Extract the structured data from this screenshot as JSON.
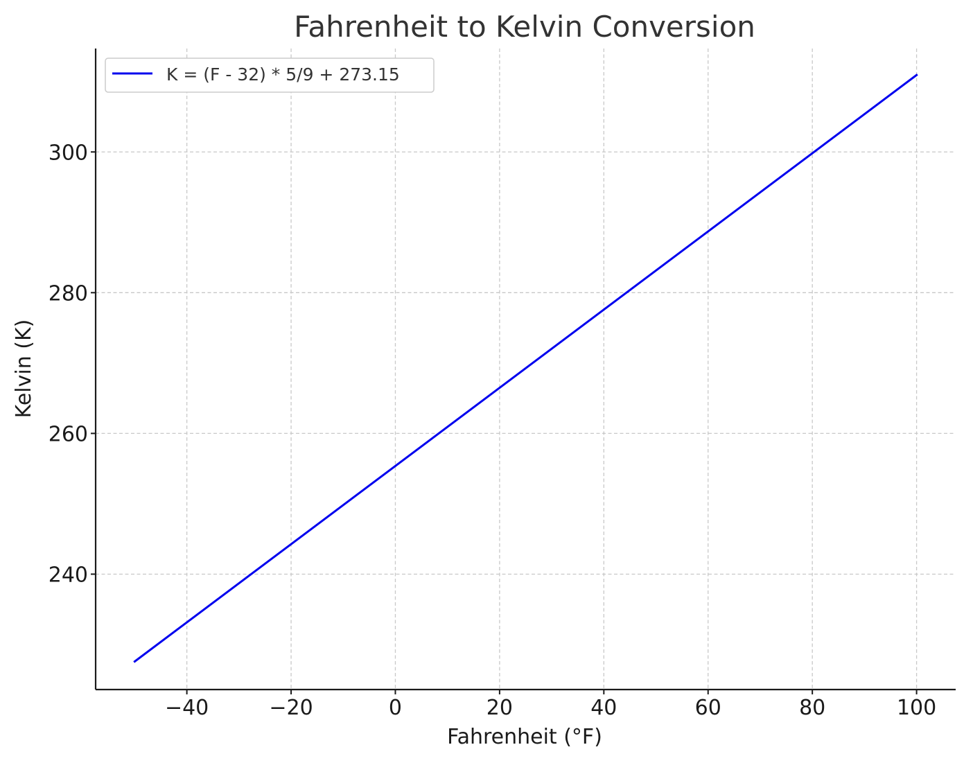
{
  "chart_data": {
    "type": "line",
    "title": "Fahrenheit to Kelvin Conversion",
    "xlabel": "Fahrenheit (°F)",
    "ylabel": "Kelvin (K)",
    "xlim": [
      -57.5,
      107.5
    ],
    "ylim": [
      223.6,
      314.7
    ],
    "x_ticks": [
      -40,
      -20,
      0,
      20,
      40,
      60,
      80,
      100
    ],
    "x_tick_labels": [
      "−40",
      "−20",
      "0",
      "20",
      "40",
      "60",
      "80",
      "100"
    ],
    "y_ticks": [
      240,
      260,
      280,
      300
    ],
    "y_tick_labels": [
      "240",
      "260",
      "280",
      "300"
    ],
    "grid": true,
    "legend_position": "upper-left",
    "series": [
      {
        "name": "K = (F - 32) * 5/9 + 273.15",
        "color": "#0000ee",
        "x": [
          -50,
          100
        ],
        "y": [
          227.59,
          310.93
        ]
      }
    ]
  }
}
